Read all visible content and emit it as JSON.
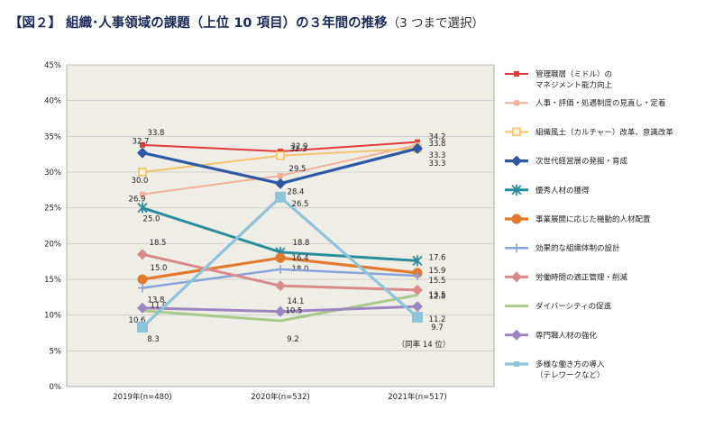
{
  "page": {
    "title_main": "【図２】 組織･人事領域の課題（上位 10 項目）の３年間の推移",
    "title_sub": "（3 つまで選択）"
  },
  "chart_data": {
    "type": "line",
    "categories": [
      "2019年(n=480)",
      "2020年(n=532)",
      "2021年(n=517)"
    ],
    "ylim": [
      0,
      45
    ],
    "yticks": [
      "0%",
      "5%",
      "10%",
      "15%",
      "20%",
      "25%",
      "30%",
      "35%",
      "40%",
      "45%"
    ],
    "grid": true,
    "legend_position": "right",
    "note": "（同率 14 位）",
    "series": [
      {
        "name": "管理職層（ミドル）の\nマネジメント能力向上",
        "values": [
          33.8,
          32.9,
          34.2
        ],
        "labels": [
          "33.8",
          "32.9",
          "34.2"
        ],
        "color": "#e03a3a",
        "marker": "square",
        "width": 2
      },
      {
        "name": "人事・評価・処遇制度の見直し・定着",
        "values": [
          26.9,
          29.5,
          33.8
        ],
        "labels": [
          "26.9",
          "29.5",
          "33.8"
        ],
        "color": "#f4b09a",
        "marker": "square",
        "width": 2
      },
      {
        "name": "組織風土（カルチャー）改革、意識改革",
        "values": [
          30.0,
          32.3,
          33.3
        ],
        "labels": [
          "30.0",
          "32.3",
          "33.3"
        ],
        "color": "#f6c26b",
        "marker": "square-open",
        "width": 2
      },
      {
        "name": "次世代経営層の発掘・育成",
        "values": [
          32.7,
          28.4,
          33.3
        ],
        "labels": [
          "32.7",
          "28.4",
          "33.3"
        ],
        "color": "#2e58a4",
        "marker": "diamond",
        "width": 3.2
      },
      {
        "name": "優秀人材の獲得",
        "values": [
          25.0,
          18.8,
          17.6
        ],
        "labels": [
          "25.0",
          "18.8",
          "17.6"
        ],
        "color": "#2a8c98",
        "marker": "star",
        "width": 3
      },
      {
        "name": "事業展開に応じた機動的人材配置",
        "values": [
          15.0,
          18.0,
          15.9
        ],
        "labels": [
          "15.0",
          "18.0",
          "15.9"
        ],
        "color": "#e07a2e",
        "marker": "circle",
        "width": 3.2
      },
      {
        "name": "効果的な組織体制の設計",
        "values": [
          13.8,
          16.4,
          15.5
        ],
        "labels": [
          "13.8",
          "16.4",
          "15.5"
        ],
        "color": "#8aa3d6",
        "marker": "plus",
        "width": 2.5
      },
      {
        "name": "労働時間の適正管理・削減",
        "values": [
          18.5,
          14.1,
          13.5
        ],
        "labels": [
          "18.5",
          "14.1",
          "13.5"
        ],
        "color": "#d98a8a",
        "marker": "diamond",
        "width": 3
      },
      {
        "name": "ダイバーシティの促進",
        "values": [
          10.6,
          9.2,
          12.8
        ],
        "labels": [
          "10.6",
          "9.2",
          "12.8"
        ],
        "color": "#a9c98a",
        "marker": "none",
        "width": 3
      },
      {
        "name": "専門職人材の強化",
        "values": [
          11.0,
          10.5,
          11.2
        ],
        "labels": [
          "11.0",
          "10.5",
          "11.2"
        ],
        "color": "#9b86c2",
        "marker": "diamond",
        "width": 3
      },
      {
        "name": "多様な働き方の導入\n（テレワークなど）",
        "values": [
          8.3,
          26.5,
          9.7
        ],
        "labels": [
          "8.3",
          "26.5",
          "9.7"
        ],
        "color": "#8ec3d9",
        "marker": "square-big",
        "width": 3.2
      }
    ]
  },
  "colors": {
    "plot_background": "#efeee6",
    "gridline": "#c9c9c9",
    "title": "#1b2a55"
  }
}
